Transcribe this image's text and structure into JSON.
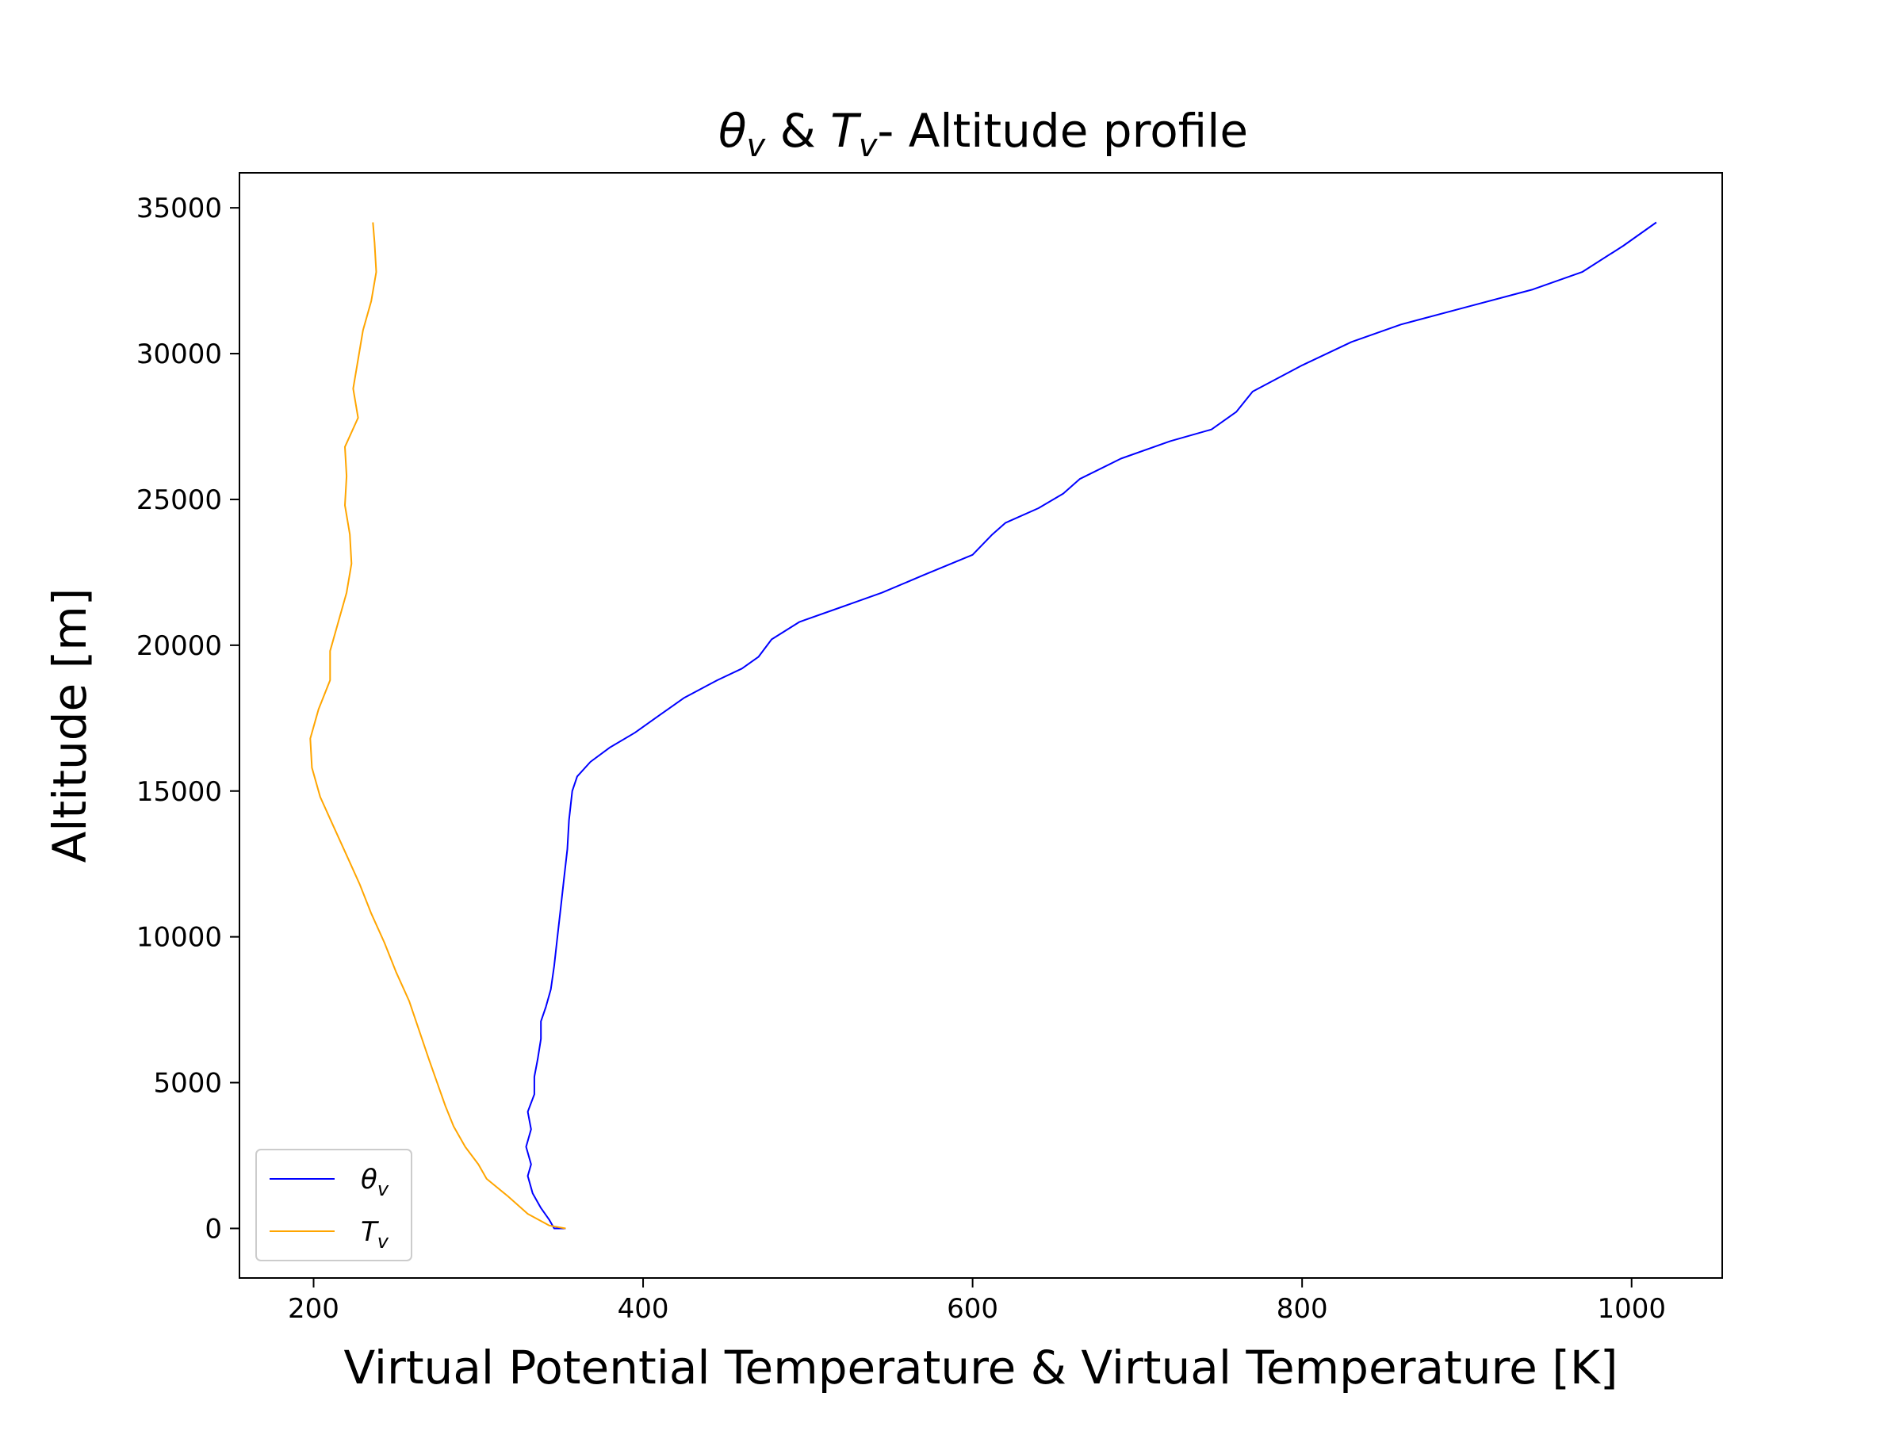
{
  "chart_data": {
    "type": "line",
    "title": "θv & Tv- Altitude profile",
    "title_parts": {
      "theta": "θ",
      "sub_v": "v",
      "amp": " & ",
      "T": "T",
      "rest": "- Altitude profile"
    },
    "xlabel": "Virtual Potential Temperature & Virtual Temperature [K]",
    "ylabel": "Altitude [m]",
    "xlim": [
      155,
      1055
    ],
    "ylim": [
      -1700,
      36200
    ],
    "xticks": [
      200,
      400,
      600,
      800,
      1000
    ],
    "yticks": [
      0,
      5000,
      10000,
      15000,
      20000,
      25000,
      30000,
      35000
    ],
    "grid": false,
    "legend_position": "lower-left",
    "series": [
      {
        "name": "θv",
        "legend_symbol": "θ",
        "legend_sub": "v",
        "color": "#0000ff",
        "points": [
          [
            353,
            0
          ],
          [
            346,
            0
          ],
          [
            343,
            300
          ],
          [
            338,
            700
          ],
          [
            333,
            1200
          ],
          [
            330,
            1800
          ],
          [
            332,
            2200
          ],
          [
            329,
            2800
          ],
          [
            332,
            3400
          ],
          [
            330,
            4000
          ],
          [
            334,
            4600
          ],
          [
            334,
            5200
          ],
          [
            336,
            5800
          ],
          [
            338,
            6500
          ],
          [
            338,
            7100
          ],
          [
            341,
            7600
          ],
          [
            344,
            8200
          ],
          [
            346,
            9000
          ],
          [
            348,
            10000
          ],
          [
            350,
            11000
          ],
          [
            352,
            12000
          ],
          [
            354,
            13000
          ],
          [
            355,
            14000
          ],
          [
            357,
            15000
          ],
          [
            360,
            15500
          ],
          [
            368,
            16000
          ],
          [
            380,
            16500
          ],
          [
            395,
            17000
          ],
          [
            410,
            17600
          ],
          [
            425,
            18200
          ],
          [
            445,
            18800
          ],
          [
            460,
            19200
          ],
          [
            470,
            19600
          ],
          [
            478,
            20200
          ],
          [
            495,
            20800
          ],
          [
            520,
            21300
          ],
          [
            545,
            21800
          ],
          [
            570,
            22400
          ],
          [
            600,
            23100
          ],
          [
            612,
            23800
          ],
          [
            620,
            24200
          ],
          [
            640,
            24700
          ],
          [
            655,
            25200
          ],
          [
            665,
            25700
          ],
          [
            690,
            26400
          ],
          [
            720,
            27000
          ],
          [
            745,
            27400
          ],
          [
            760,
            28000
          ],
          [
            770,
            28700
          ],
          [
            800,
            29600
          ],
          [
            830,
            30400
          ],
          [
            860,
            31000
          ],
          [
            900,
            31600
          ],
          [
            940,
            32200
          ],
          [
            970,
            32800
          ],
          [
            995,
            33700
          ],
          [
            1015,
            34500
          ]
        ]
      },
      {
        "name": "Tv",
        "legend_symbol": "T",
        "legend_sub": "v",
        "color": "#ffa500",
        "points": [
          [
            353,
            0
          ],
          [
            343,
            100
          ],
          [
            330,
            500
          ],
          [
            318,
            1100
          ],
          [
            305,
            1700
          ],
          [
            300,
            2200
          ],
          [
            292,
            2800
          ],
          [
            285,
            3500
          ],
          [
            280,
            4200
          ],
          [
            275,
            5000
          ],
          [
            270,
            5800
          ],
          [
            264,
            6800
          ],
          [
            258,
            7800
          ],
          [
            250,
            8800
          ],
          [
            243,
            9800
          ],
          [
            235,
            10800
          ],
          [
            228,
            11800
          ],
          [
            220,
            12800
          ],
          [
            212,
            13800
          ],
          [
            204,
            14800
          ],
          [
            199,
            15800
          ],
          [
            198,
            16800
          ],
          [
            203,
            17800
          ],
          [
            210,
            18800
          ],
          [
            210,
            19800
          ],
          [
            215,
            20800
          ],
          [
            220,
            21800
          ],
          [
            223,
            22800
          ],
          [
            222,
            23800
          ],
          [
            219,
            24800
          ],
          [
            220,
            25800
          ],
          [
            219,
            26800
          ],
          [
            227,
            27800
          ],
          [
            224,
            28800
          ],
          [
            227,
            29800
          ],
          [
            230,
            30800
          ],
          [
            235,
            31800
          ],
          [
            238,
            32800
          ],
          [
            237,
            33800
          ],
          [
            236,
            34500
          ]
        ]
      }
    ]
  }
}
